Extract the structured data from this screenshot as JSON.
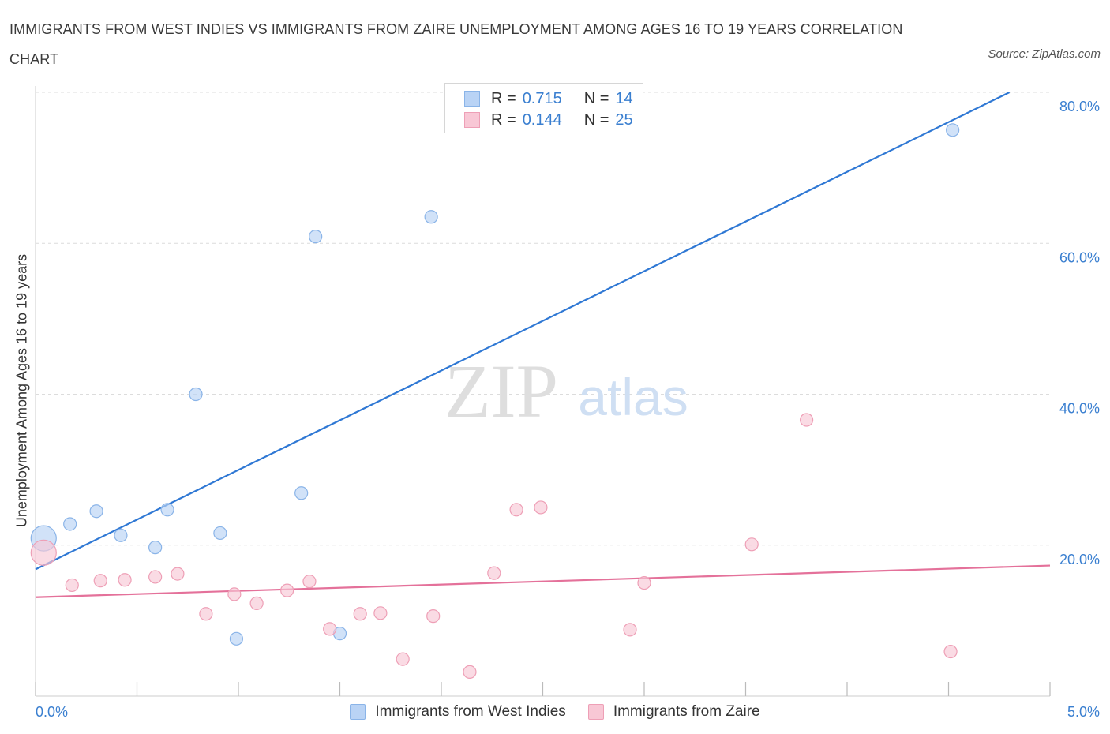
{
  "header": {
    "title": "IMMIGRANTS FROM WEST INDIES VS IMMIGRANTS FROM ZAIRE UNEMPLOYMENT AMONG AGES 16 TO 19 YEARS CORRELATION CHART",
    "source": "Source: ZipAtlas.com"
  },
  "watermark": {
    "zip": "ZIP",
    "atlas": "atlas"
  },
  "legend": {
    "rows": [
      {
        "r_label": "R =",
        "r_value": "0.715",
        "n_label": "N =",
        "n_value": "14"
      },
      {
        "r_label": "R =",
        "r_value": "0.144",
        "n_label": "N =",
        "n_value": "25"
      }
    ]
  },
  "colors": {
    "blue_fill": "#b9d3f5",
    "blue_stroke": "#8ab4e8",
    "blue_line": "#2f78d4",
    "pink_fill": "#f8c7d5",
    "pink_stroke": "#ee9fb6",
    "pink_line": "#e4719a",
    "tick_label": "#3a7fd0",
    "grid": "#dcdcdc"
  },
  "chart_data": {
    "type": "scatter",
    "title": "IMMIGRANTS FROM WEST INDIES VS IMMIGRANTS FROM ZAIRE UNEMPLOYMENT AMONG AGES 16 TO 19 YEARS CORRELATION CHART",
    "xlabel": "",
    "ylabel": "Unemployment Among Ages 16 to 19 years",
    "xlim": [
      0,
      5
    ],
    "ylim": [
      0,
      80
    ],
    "x_tick_labels": [
      {
        "value": 0,
        "label": "0.0%"
      },
      {
        "value": 5,
        "label": "5.0%"
      }
    ],
    "x_minor_ticks": [
      0,
      0.5,
      1.0,
      1.5,
      2.0,
      2.5,
      3.0,
      3.5,
      4.0,
      4.5,
      5.0
    ],
    "y_ticks": [
      {
        "value": 20,
        "label": "20.0%"
      },
      {
        "value": 40,
        "label": "40.0%"
      },
      {
        "value": 60,
        "label": "60.0%"
      },
      {
        "value": 80,
        "label": "80.0%"
      }
    ],
    "grid": true,
    "legend_position": "bottom-center",
    "series": [
      {
        "name": "Immigrants from West Indies",
        "color": "blue",
        "r": 0.715,
        "n": 14,
        "points": [
          {
            "x": 0.04,
            "y": 20.9,
            "size": "large"
          },
          {
            "x": 0.17,
            "y": 22.8
          },
          {
            "x": 0.3,
            "y": 24.5
          },
          {
            "x": 0.42,
            "y": 21.3
          },
          {
            "x": 0.59,
            "y": 19.7
          },
          {
            "x": 0.65,
            "y": 24.7
          },
          {
            "x": 0.79,
            "y": 40.0
          },
          {
            "x": 0.91,
            "y": 21.6
          },
          {
            "x": 0.99,
            "y": 7.6
          },
          {
            "x": 1.31,
            "y": 26.9
          },
          {
            "x": 1.38,
            "y": 60.9
          },
          {
            "x": 1.5,
            "y": 8.3
          },
          {
            "x": 1.95,
            "y": 63.5
          },
          {
            "x": 4.52,
            "y": 75.0
          }
        ],
        "trend": {
          "x0": 0,
          "y0": 16.8,
          "x1": 4.8,
          "y1": 80.0
        }
      },
      {
        "name": "Immigrants from Zaire",
        "color": "pink",
        "r": 0.144,
        "n": 25,
        "points": [
          {
            "x": 0.04,
            "y": 19.0,
            "size": "large"
          },
          {
            "x": 0.18,
            "y": 14.7
          },
          {
            "x": 0.32,
            "y": 15.3
          },
          {
            "x": 0.44,
            "y": 15.4
          },
          {
            "x": 0.59,
            "y": 15.8
          },
          {
            "x": 0.7,
            "y": 16.2
          },
          {
            "x": 0.84,
            "y": 10.9
          },
          {
            "x": 0.98,
            "y": 13.5
          },
          {
            "x": 1.09,
            "y": 12.3
          },
          {
            "x": 1.24,
            "y": 14.0
          },
          {
            "x": 1.35,
            "y": 15.2
          },
          {
            "x": 1.45,
            "y": 8.9
          },
          {
            "x": 1.6,
            "y": 10.9
          },
          {
            "x": 1.7,
            "y": 11.0
          },
          {
            "x": 1.81,
            "y": 4.9
          },
          {
            "x": 1.96,
            "y": 10.6
          },
          {
            "x": 2.14,
            "y": 3.2
          },
          {
            "x": 2.26,
            "y": 16.3
          },
          {
            "x": 2.37,
            "y": 24.7
          },
          {
            "x": 2.49,
            "y": 25.0
          },
          {
            "x": 2.93,
            "y": 8.8
          },
          {
            "x": 3.0,
            "y": 15.0
          },
          {
            "x": 3.53,
            "y": 20.1
          },
          {
            "x": 3.8,
            "y": 36.6
          },
          {
            "x": 4.51,
            "y": 5.9
          }
        ],
        "trend": {
          "x0": 0,
          "y0": 13.1,
          "x1": 5.0,
          "y1": 17.3
        }
      }
    ]
  }
}
